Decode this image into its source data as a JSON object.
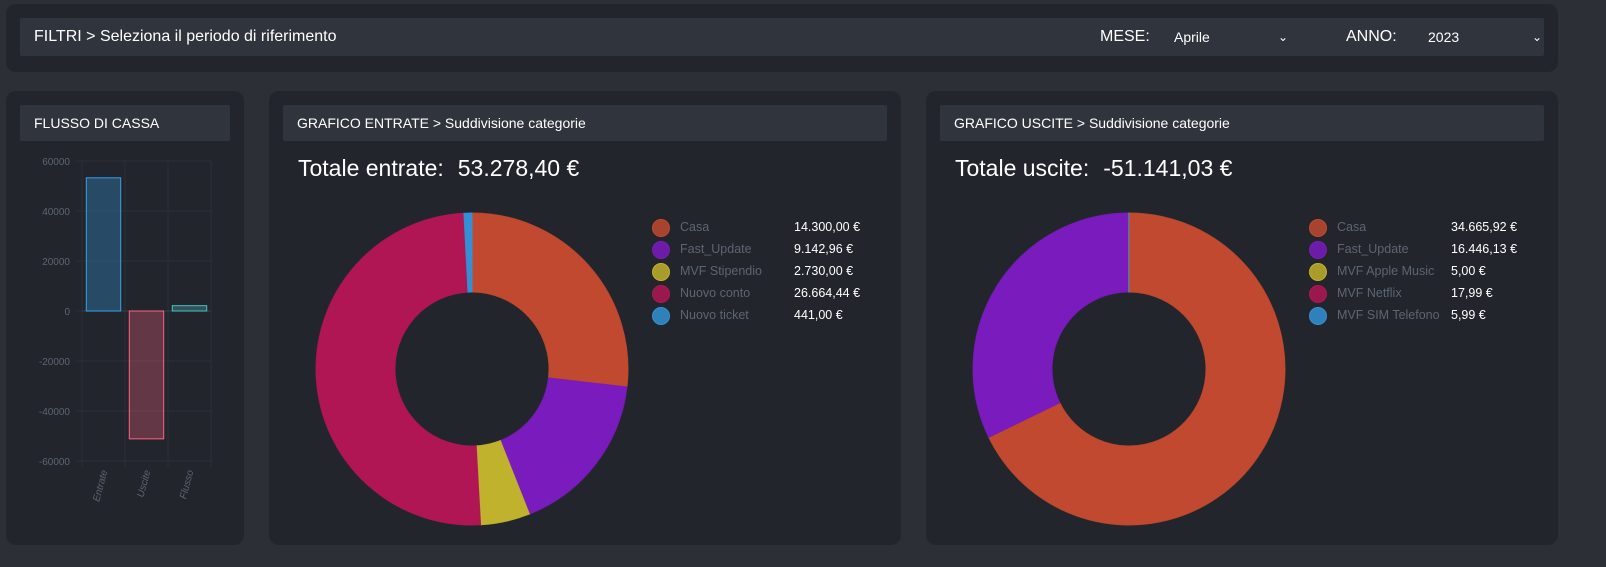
{
  "filters": {
    "title": "FILTRI > Seleziona il periodo di riferimento",
    "month_label": "MESE:",
    "month_value": "Aprile",
    "year_label": "ANNO:",
    "year_value": "2023"
  },
  "cashflow": {
    "title": "FLUSSO DI CASSA"
  },
  "income": {
    "title": "GRAFICO ENTRATE > Suddivisione categorie",
    "total_label": "Totale entrate:",
    "total_value": "53.278,40 €"
  },
  "expenses": {
    "title": "GRAFICO USCITE > Suddivisione categorie",
    "total_label": "Totale uscite:",
    "total_value": "-51.141,03 €"
  },
  "chart_data": [
    {
      "type": "bar",
      "title": "FLUSSO DI CASSA",
      "categories": [
        "Entrate",
        "Uscite",
        "Flusso"
      ],
      "values": [
        53278.4,
        -51141.03,
        2137.37
      ],
      "colors": [
        "#36a2eb",
        "#ff6384",
        "#4bc0c0"
      ],
      "ylim": [
        -60000,
        60000
      ],
      "yticks": [
        "60000",
        "40000",
        "20000",
        "0",
        "-20000",
        "-40000",
        "-60000"
      ],
      "grid": true
    },
    {
      "type": "pie",
      "title": "GRAFICO ENTRATE > Suddivisione categorie",
      "labels": [
        "Casa",
        "Fast_Update",
        "MVF Stipendio",
        "Nuovo conto",
        "Nuovo ticket"
      ],
      "values": [
        14300.0,
        9142.96,
        2730.0,
        26664.44,
        441.0
      ],
      "value_labels": [
        "14.300,00 €",
        "9.142,96 €",
        "2.730,00 €",
        "26.664,44 €",
        "441,00 €"
      ],
      "colors": [
        "#c0492f",
        "#7a1bbd",
        "#c0b22c",
        "#b01654",
        "#3390d4"
      ],
      "legend": "right"
    },
    {
      "type": "pie",
      "title": "GRAFICO USCITE > Suddivisione categorie",
      "labels": [
        "Casa",
        "Fast_Update",
        "MVF Apple Music",
        "MVF Netflix",
        "MVF SIM Telefono"
      ],
      "values": [
        34665.92,
        16446.13,
        5.0,
        17.99,
        5.99
      ],
      "value_labels": [
        "34.665,92 €",
        "16.446,13 €",
        "5,00 €",
        "17,99 €",
        "5,99 €"
      ],
      "colors": [
        "#c0492f",
        "#7a1bbd",
        "#c0b22c",
        "#b01654",
        "#3390d4"
      ],
      "legend": "right"
    }
  ]
}
